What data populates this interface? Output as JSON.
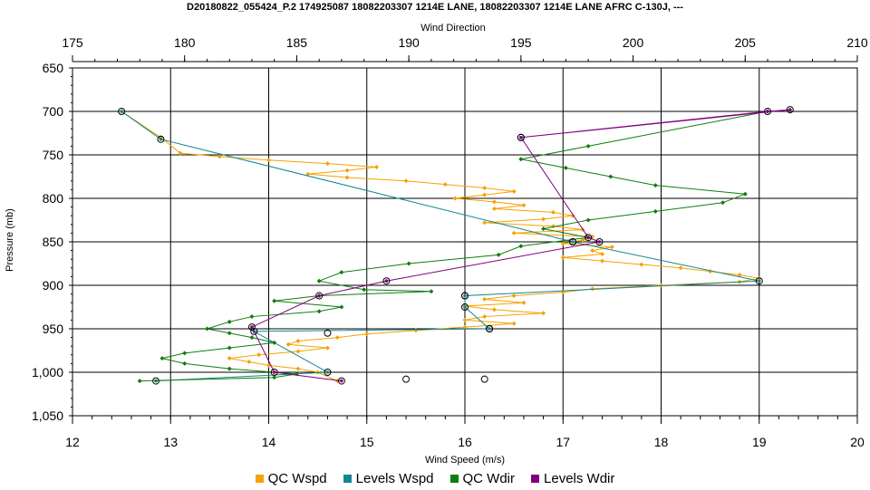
{
  "chart_data": {
    "type": "line",
    "title": "D20180822_055424_P.2 174925087 18082203307 1214E LANE, 18082203307 1214E LANE AFRC C-130J, ---",
    "xlabel": "Wind Speed (m/s)",
    "x2label": "Wind Direction",
    "ylabel": "Pressure (mb)",
    "xlim": [
      12,
      20
    ],
    "x2lim": [
      175,
      210
    ],
    "ylim": [
      650,
      1050
    ],
    "y_inverted": true,
    "grid": true,
    "x_ticks": [
      "12",
      "13",
      "14",
      "15",
      "16",
      "17",
      "18",
      "19",
      "20"
    ],
    "x2_ticks": [
      "175",
      "180",
      "185",
      "190",
      "195",
      "200",
      "205",
      "210"
    ],
    "y_ticks": [
      "650",
      "700",
      "750",
      "800",
      "850",
      "900",
      "950",
      "1,000",
      "1,050"
    ],
    "legend_position": "bottom",
    "colors": {
      "qc_wspd": "#f5a100",
      "levels_wspd": "#12878f",
      "qc_wdir": "#0f7d0f",
      "levels_wdir": "#800080"
    },
    "series": [
      {
        "name": "QC Wspd",
        "axis": "speed",
        "points": [
          [
            12.5,
            700
          ],
          [
            12.9,
            730
          ],
          [
            13.1,
            748
          ],
          [
            13.5,
            752
          ],
          [
            14.0,
            756
          ],
          [
            14.6,
            760
          ],
          [
            15.1,
            764
          ],
          [
            14.8,
            768
          ],
          [
            14.4,
            772
          ],
          [
            14.8,
            776
          ],
          [
            15.4,
            780
          ],
          [
            15.8,
            784
          ],
          [
            16.2,
            788
          ],
          [
            16.5,
            792
          ],
          [
            16.2,
            796
          ],
          [
            15.9,
            800
          ],
          [
            16.3,
            804
          ],
          [
            16.6,
            808
          ],
          [
            16.3,
            812
          ],
          [
            16.9,
            816
          ],
          [
            17.1,
            820
          ],
          [
            16.8,
            824
          ],
          [
            16.2,
            828
          ],
          [
            16.9,
            832
          ],
          [
            17.2,
            836
          ],
          [
            16.5,
            840
          ],
          [
            17.3,
            844
          ],
          [
            17.2,
            848
          ],
          [
            17.0,
            852
          ],
          [
            17.5,
            856
          ],
          [
            17.3,
            860
          ],
          [
            17.4,
            864
          ],
          [
            17.0,
            868
          ],
          [
            17.4,
            872
          ],
          [
            17.8,
            876
          ],
          [
            18.2,
            880
          ],
          [
            18.5,
            884
          ],
          [
            18.8,
            888
          ],
          [
            19.0,
            892
          ],
          [
            18.8,
            896
          ],
          [
            18.0,
            900
          ],
          [
            17.3,
            904
          ],
          [
            17.0,
            908
          ],
          [
            16.5,
            912
          ],
          [
            16.2,
            916
          ],
          [
            16.6,
            920
          ],
          [
            16.0,
            924
          ],
          [
            16.3,
            928
          ],
          [
            16.8,
            932
          ],
          [
            16.2,
            936
          ],
          [
            16.0,
            940
          ],
          [
            16.5,
            944
          ],
          [
            16.0,
            948
          ],
          [
            15.5,
            952
          ],
          [
            15.0,
            956
          ],
          [
            14.7,
            960
          ],
          [
            14.3,
            964
          ],
          [
            14.2,
            968
          ],
          [
            14.6,
            972
          ],
          [
            14.3,
            976
          ],
          [
            13.9,
            980
          ],
          [
            13.6,
            984
          ],
          [
            13.8,
            988
          ],
          [
            14.0,
            992
          ],
          [
            14.3,
            996
          ],
          [
            14.5,
            1000
          ],
          [
            14.7,
            1010
          ]
        ]
      },
      {
        "name": "Levels Wspd",
        "axis": "speed",
        "points": [
          [
            12.5,
            700
          ],
          [
            12.9,
            732
          ],
          [
            17.1,
            850
          ],
          [
            19.0,
            895
          ],
          [
            16.0,
            912
          ],
          [
            16.0,
            925
          ],
          [
            16.25,
            950
          ],
          [
            13.85,
            953
          ],
          [
            14.6,
            1000
          ],
          [
            12.85,
            1010
          ]
        ]
      },
      {
        "name": "QC Wdir",
        "axis": "direction",
        "points": [
          [
            206,
            700
          ],
          [
            198,
            740
          ],
          [
            195,
            755
          ],
          [
            197,
            765
          ],
          [
            199,
            775
          ],
          [
            201,
            785
          ],
          [
            205,
            795
          ],
          [
            204,
            805
          ],
          [
            201,
            815
          ],
          [
            198,
            825
          ],
          [
            196,
            835
          ],
          [
            198,
            845
          ],
          [
            195,
            855
          ],
          [
            194,
            865
          ],
          [
            190,
            875
          ],
          [
            187,
            885
          ],
          [
            186,
            895
          ],
          [
            188,
            905
          ],
          [
            191,
            907
          ],
          [
            186,
            912
          ],
          [
            184,
            918
          ],
          [
            187,
            925
          ],
          [
            186,
            930
          ],
          [
            183,
            936
          ],
          [
            182,
            942
          ],
          [
            181,
            950
          ],
          [
            182,
            955
          ],
          [
            183,
            960
          ],
          [
            184,
            966
          ],
          [
            182,
            972
          ],
          [
            180,
            978
          ],
          [
            179,
            984
          ],
          [
            180,
            990
          ],
          [
            182,
            996
          ],
          [
            185,
            1002
          ],
          [
            184,
            1006
          ],
          [
            178,
            1010
          ]
        ]
      },
      {
        "name": "Levels Wdir",
        "axis": "direction",
        "points": [
          [
            195,
            730
          ],
          [
            206,
            700
          ],
          [
            207,
            698
          ],
          [
            195,
            730
          ],
          [
            198,
            845
          ],
          [
            198.5,
            850
          ],
          [
            189,
            895
          ],
          [
            186,
            912
          ],
          [
            183,
            948
          ],
          [
            184,
            1000
          ],
          [
            187,
            1010
          ]
        ]
      }
    ],
    "isolated_level_markers": [
      [
        14.6,
        955
      ],
      [
        15.4,
        1008
      ],
      [
        16.2,
        1008
      ],
      [
        17.1,
        850
      ],
      [
        16.0,
        912
      ],
      [
        16.25,
        950
      ]
    ]
  }
}
